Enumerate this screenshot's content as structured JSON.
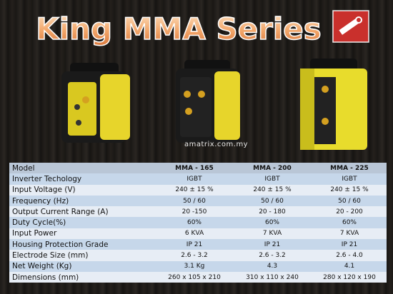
{
  "header": {
    "title": "King MMA Series"
  },
  "watermark": "amatrix.com.my",
  "table": {
    "header": [
      "Model",
      "MMA - 165",
      "MMA - 200",
      "MMA - 225"
    ],
    "rows": [
      [
        "Inverter Techology",
        "IGBT",
        "IGBT",
        "IGBT"
      ],
      [
        "Input Voltage (V)",
        "240 ± 15 %",
        "240 ± 15 %",
        "240 ± 15 %"
      ],
      [
        "Frequency (Hz)",
        "50 / 60",
        "50 / 60",
        "50 / 60"
      ],
      [
        "Output Current Range (A)",
        "20 -150",
        "20 - 180",
        "20 - 200"
      ],
      [
        "Duty Cycle(%)",
        "60%",
        "60%",
        "60%"
      ],
      [
        "Input Power",
        "6 KVA",
        "7 KVA",
        "7 KVA"
      ],
      [
        "Housing Protection Grade",
        "IP 21",
        "IP 21",
        "IP 21"
      ],
      [
        "Electrode Size (mm)",
        "2.6 - 3.2",
        "2.6 - 3.2",
        "2.6 - 4.0"
      ],
      [
        "Net Weight (Kg)",
        "3.1 Kg",
        "4.3",
        "4.1"
      ],
      [
        "Dimensions (mm)",
        "260 x 105 x 210",
        "310 x 110 x 240",
        "280 x 120 x 190"
      ]
    ]
  }
}
